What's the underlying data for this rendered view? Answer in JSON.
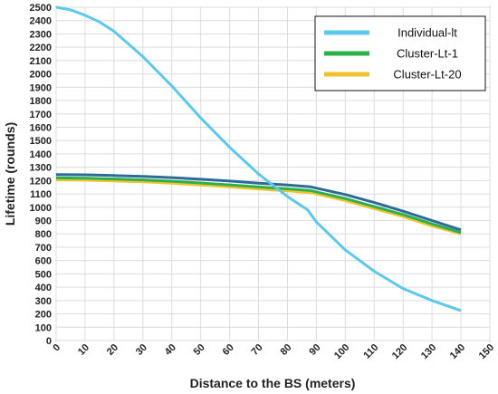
{
  "chart_data": {
    "type": "line",
    "title": "",
    "xlabel": "Distance to the BS (meters)",
    "ylabel": "Lifetime (rounds)",
    "xlim": [
      0,
      150
    ],
    "ylim": [
      0,
      2500
    ],
    "x_ticks": [
      0,
      10,
      20,
      30,
      40,
      50,
      60,
      70,
      80,
      90,
      100,
      110,
      120,
      130,
      140,
      150
    ],
    "y_ticks": [
      0,
      100,
      200,
      300,
      400,
      500,
      600,
      700,
      800,
      900,
      1000,
      1100,
      1200,
      1300,
      1400,
      1500,
      1600,
      1700,
      1800,
      1900,
      2000,
      2100,
      2200,
      2300,
      2400,
      2500
    ],
    "grid": true,
    "legend_position": "top-right",
    "series": [
      {
        "name": "Individual-lt",
        "color": "#5bc8ec",
        "x": [
          0,
          5,
          10,
          15,
          20,
          30,
          40,
          50,
          60,
          70,
          80,
          87,
          90,
          100,
          110,
          120,
          130,
          140
        ],
        "y": [
          2500,
          2480,
          2440,
          2390,
          2320,
          2130,
          1910,
          1670,
          1450,
          1250,
          1080,
          980,
          890,
          680,
          520,
          390,
          300,
          225
        ]
      },
      {
        "name": "Cluster-Lt-1",
        "color": "#2bb04a",
        "x": [
          0,
          10,
          20,
          30,
          40,
          50,
          60,
          70,
          80,
          88,
          100,
          110,
          120,
          130,
          140
        ],
        "y": [
          1220,
          1218,
          1212,
          1205,
          1195,
          1182,
          1168,
          1152,
          1138,
          1125,
          1065,
          1005,
          945,
          875,
          810
        ]
      },
      {
        "name": "Cluster-Lt-20",
        "color": "#f2c12e",
        "x": [
          0,
          10,
          20,
          30,
          40,
          50,
          60,
          70,
          80,
          88,
          100,
          110,
          120,
          130,
          140
        ],
        "y": [
          1205,
          1203,
          1197,
          1190,
          1180,
          1167,
          1153,
          1137,
          1123,
          1110,
          1050,
          990,
          930,
          860,
          800
        ]
      }
    ],
    "unlabeled_lines": [
      {
        "color": "#2d6a99",
        "x": [
          0,
          10,
          20,
          30,
          40,
          50,
          60,
          70,
          80,
          88,
          100,
          110,
          120,
          130,
          140
        ],
        "y": [
          1245,
          1243,
          1238,
          1231,
          1222,
          1210,
          1196,
          1181,
          1167,
          1153,
          1095,
          1035,
          970,
          900,
          830
        ]
      }
    ]
  }
}
